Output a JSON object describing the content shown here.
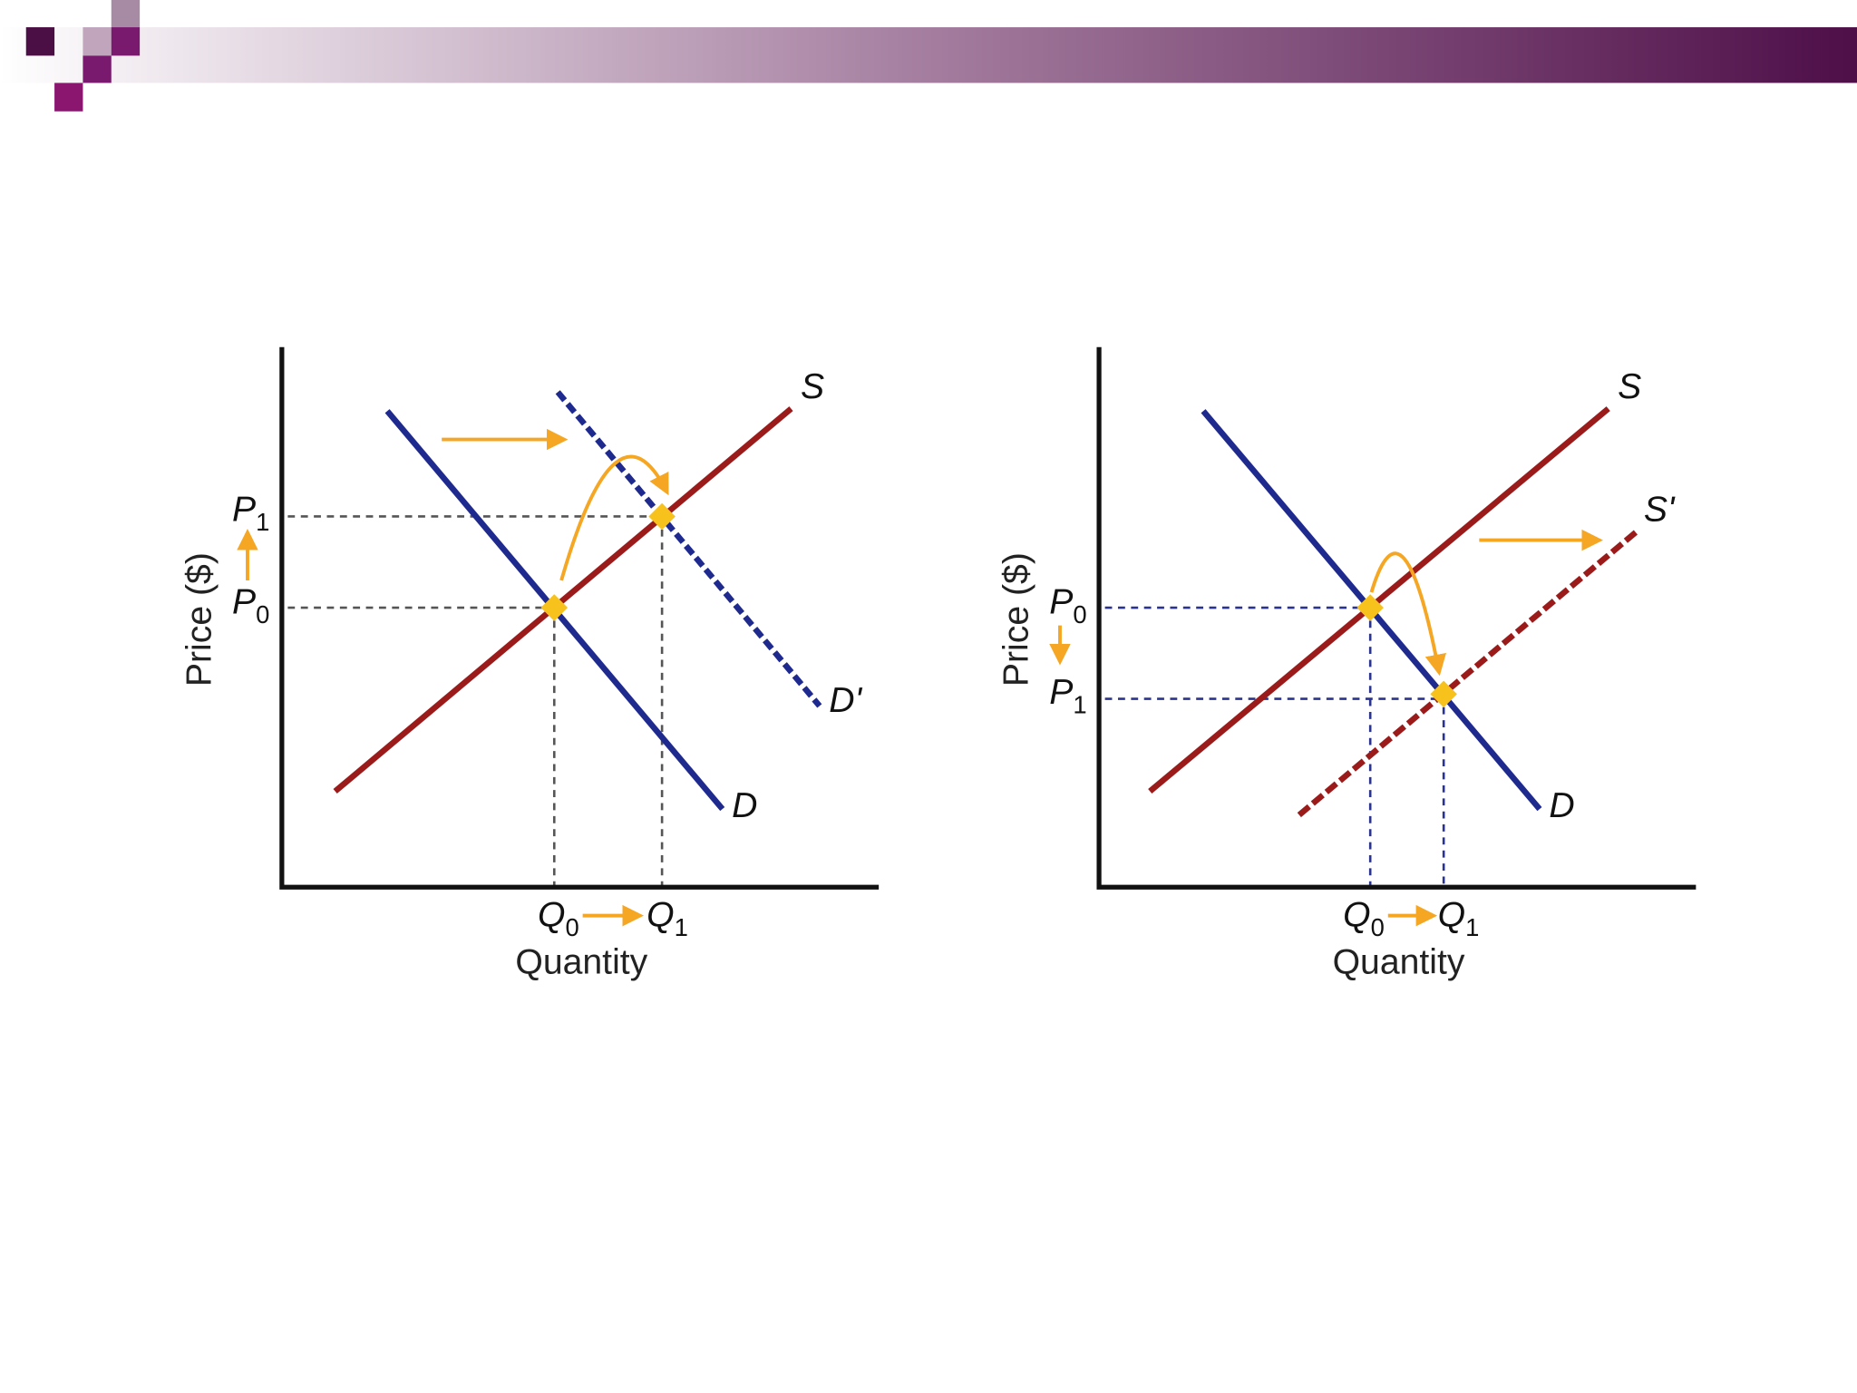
{
  "diagrams": [
    {
      "y_label": "Price ($)",
      "x_label": "Quantity",
      "supply": "S",
      "demand": "D",
      "shifted": "D'",
      "prices": [
        {
          "base": "P",
          "sub": "0"
        },
        {
          "base": "P",
          "sub": "1"
        }
      ],
      "quantities": [
        {
          "base": "Q",
          "sub": "0"
        },
        {
          "base": "Q",
          "sub": "1"
        }
      ]
    },
    {
      "y_label": "Price ($)",
      "x_label": "Quantity",
      "supply": "S",
      "demand": "D",
      "shifted": "S'",
      "prices": [
        {
          "base": "P",
          "sub": "0"
        },
        {
          "base": "P",
          "sub": "1"
        }
      ],
      "quantities": [
        {
          "base": "Q",
          "sub": "0"
        },
        {
          "base": "Q",
          "sub": "1"
        }
      ]
    }
  ]
}
